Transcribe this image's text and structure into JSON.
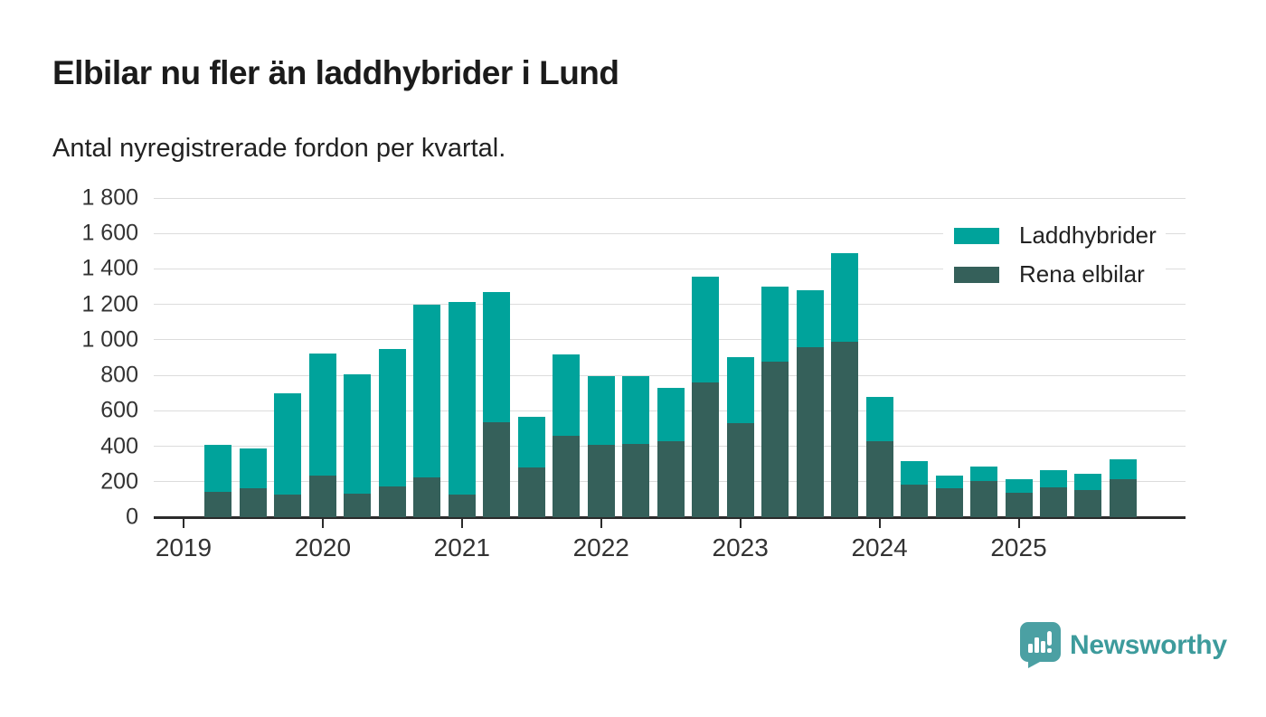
{
  "header": {
    "title": "Elbilar nu fler än laddhybrider i Lund",
    "subtitle": "Antal nyregistrerade fordon per kvartal."
  },
  "chart_data": {
    "type": "bar",
    "stacked": true,
    "title": "Elbilar nu fler än laddhybrider i Lund",
    "subtitle": "Antal nyregistrerade fordon per kvartal.",
    "ylim": [
      0,
      1800
    ],
    "ytick_values": [
      0,
      200,
      400,
      600,
      800,
      1000,
      1200,
      1400,
      1600,
      1800
    ],
    "ytick_labels": [
      "0",
      "200",
      "400",
      "600",
      "800",
      "1 000",
      "1 200",
      "1 400",
      "1 600",
      "1 800"
    ],
    "xtick_labels": [
      "2019",
      "2020",
      "2021",
      "2022",
      "2023",
      "2024",
      "2025"
    ],
    "grid": true,
    "legend_position": "top-right",
    "first_bar_quarter_offset": 1,
    "categories": [
      "2019 K2",
      "2019 K3",
      "2019 K4",
      "2020 K1",
      "2020 K2",
      "2020 K3",
      "2020 K4",
      "2021 K1",
      "2021 K2",
      "2021 K3",
      "2021 K4",
      "2022 K1",
      "2022 K2",
      "2022 K3",
      "2022 K4",
      "2023 K1",
      "2023 K2",
      "2023 K3",
      "2023 K4",
      "2024 K1",
      "2024 K2",
      "2024 K3",
      "2024 K4",
      "2025 K1",
      "2025 K2",
      "2025 K3",
      "2025 K4"
    ],
    "series": [
      {
        "name": "Rena elbilar",
        "color": "#35605a",
        "values": [
          145,
          165,
          130,
          235,
          132,
          172,
          225,
          130,
          538,
          280,
          460,
          408,
          414,
          430,
          758,
          532,
          879,
          957,
          990,
          428,
          182,
          165,
          206,
          136,
          170,
          155,
          214
        ]
      },
      {
        "name": "Laddhybrider",
        "color": "#00a39b",
        "values": [
          265,
          225,
          570,
          690,
          673,
          776,
          972,
          1083,
          732,
          286,
          456,
          390,
          380,
          298,
          600,
          371,
          419,
          323,
          500,
          250,
          134,
          71,
          82,
          79,
          95,
          91,
          112
        ]
      }
    ]
  },
  "legend": {
    "items": [
      {
        "label": "Laddhybrider",
        "color": "#00a39b"
      },
      {
        "label": "Rena elbilar",
        "color": "#35605a"
      }
    ]
  },
  "branding": {
    "name": "Newsworthy",
    "text_color": "#3d9b9c",
    "badge_color": "#4ba0a3",
    "icon": "newsworthy-speech-bubble-chart-icon"
  }
}
